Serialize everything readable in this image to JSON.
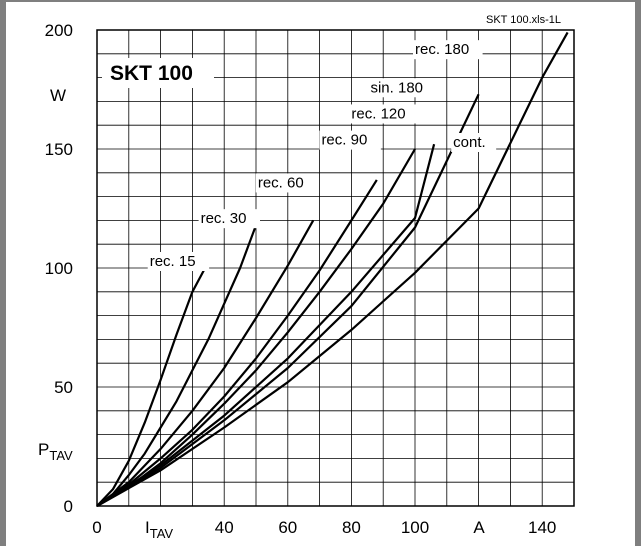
{
  "chart_data": {
    "type": "line",
    "title": "SKT 100",
    "source_tag": "SKT 100.xls-1L",
    "xlabel": "I",
    "xlabel_sub": "TAV",
    "xunit": "A",
    "ylabel": "P",
    "ylabel_sub": "TAV",
    "yunit": "W",
    "xlim": [
      0,
      150
    ],
    "ylim": [
      0,
      200
    ],
    "grid": true,
    "x_ticks": [
      0,
      20,
      40,
      60,
      80,
      100,
      120,
      140
    ],
    "x_tick_labels": [
      "0",
      "",
      "40",
      "60",
      "80",
      "100",
      "",
      "140"
    ],
    "y_ticks": [
      0,
      50,
      100,
      150,
      200
    ],
    "y_tick_labels": [
      "0",
      "50",
      "100",
      "150",
      "200"
    ],
    "series": [
      {
        "name": "rec. 15",
        "x": [
          0,
          5,
          10,
          15,
          20,
          25,
          30,
          34
        ],
        "y": [
          0,
          7,
          19,
          35,
          53,
          72,
          90,
          100
        ]
      },
      {
        "name": "rec. 30",
        "x": [
          0,
          5,
          10,
          15,
          20,
          25,
          30,
          35,
          40,
          45,
          50
        ],
        "y": [
          0,
          5,
          13,
          22,
          33,
          44,
          57,
          70,
          85,
          100,
          118
        ]
      },
      {
        "name": "rec. 60",
        "x": [
          0,
          10,
          20,
          30,
          40,
          50,
          60,
          68
        ],
        "y": [
          0,
          10,
          24,
          40,
          58,
          79,
          101,
          120
        ]
      },
      {
        "name": "rec. 90",
        "x": [
          0,
          10,
          20,
          30,
          40,
          50,
          60,
          70,
          80,
          88
        ],
        "y": [
          0,
          9,
          20,
          32,
          46,
          62,
          80,
          99,
          120,
          137
        ]
      },
      {
        "name": "rec. 120",
        "x": [
          0,
          10,
          20,
          30,
          40,
          50,
          60,
          70,
          80,
          90,
          100
        ],
        "y": [
          0,
          8,
          18,
          30,
          43,
          57,
          73,
          90,
          108,
          127,
          150
        ]
      },
      {
        "name": "sin. 180",
        "x": [
          0,
          20,
          40,
          60,
          80,
          100,
          106
        ],
        "y": [
          0,
          17,
          38,
          62,
          90,
          121,
          152
        ]
      },
      {
        "name": "rec. 180",
        "x": [
          0,
          20,
          40,
          60,
          80,
          100,
          120
        ],
        "y": [
          0,
          16,
          36,
          58,
          84,
          117,
          173
        ]
      },
      {
        "name": "cont.",
        "x": [
          0,
          20,
          40,
          60,
          80,
          100,
          120,
          140,
          148
        ],
        "y": [
          0,
          15,
          33,
          52,
          74,
          98,
          125,
          180,
          199
        ]
      }
    ],
    "series_labels": [
      {
        "text": "rec. 15",
        "x": 34,
        "y": 100
      },
      {
        "text": "rec. 30",
        "x": 50,
        "y": 118
      },
      {
        "text": "rec. 60",
        "x": 68,
        "y": 133
      },
      {
        "text": "rec. 90",
        "x": 88,
        "y": 151
      },
      {
        "text": "rec. 120",
        "x": 100,
        "y": 162
      },
      {
        "text": "sin. 180",
        "x": 106,
        "y": 173
      },
      {
        "text": "rec. 180",
        "x": 120,
        "y": 189
      },
      {
        "text": "cont.",
        "x": 112,
        "y": 150
      }
    ]
  }
}
